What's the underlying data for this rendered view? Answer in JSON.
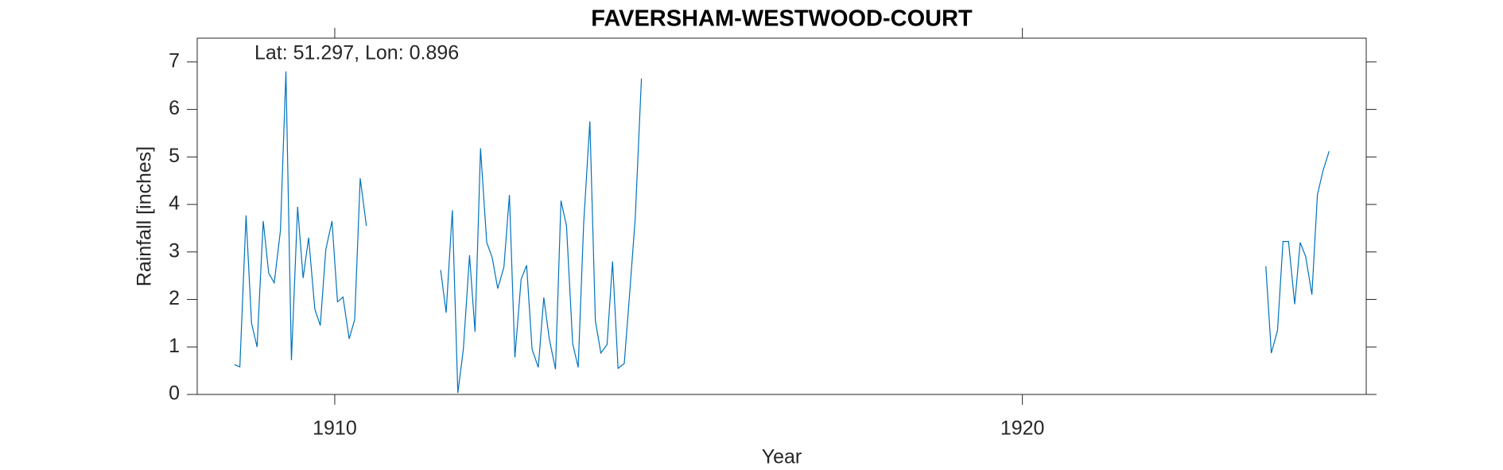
{
  "chart_data": {
    "type": "line",
    "title": "FAVERSHAM-WESTWOOD-COURT",
    "annotation": "Lat: 51.297, Lon: 0.896",
    "xlabel": "Year",
    "ylabel": "Rainfall [inches]",
    "xlim": [
      1908,
      1925
    ],
    "ylim": [
      0,
      7.5
    ],
    "xticks": [
      1910,
      1920
    ],
    "yticks": [
      0,
      1,
      2,
      3,
      4,
      5,
      6,
      7
    ],
    "x": [
      1908.54,
      1908.62,
      1908.71,
      1908.79,
      1908.87,
      1908.96,
      1909.04,
      1909.12,
      1909.21,
      1909.29,
      1909.37,
      1909.46,
      1909.54,
      1909.62,
      1909.71,
      1909.79,
      1909.87,
      1909.96,
      1910.04,
      1910.12,
      1910.21,
      1910.29,
      1910.37,
      1910.46,
      1910.5,
      1911.54,
      1911.62,
      1911.71,
      1911.79,
      1911.87,
      1911.96,
      1912.04,
      1912.12,
      1912.21,
      1912.29,
      1912.37,
      1912.46,
      1912.54,
      1912.62,
      1912.71,
      1912.79,
      1912.87,
      1912.96,
      1913.04,
      1913.12,
      1913.21,
      1913.29,
      1913.37,
      1913.46,
      1913.54,
      1913.62,
      1913.71,
      1913.79,
      1913.87,
      1913.96,
      1914.04,
      1914.12,
      1914.21,
      1914.29,
      1914.37,
      1914.46,
      1915,
      1923.54,
      1923.62,
      1923.71,
      1923.79,
      1923.87,
      1923.96,
      1924.04,
      1924.12,
      1924.21,
      1924.29,
      1924.37,
      1924.46
    ],
    "series": [
      {
        "color": "#0072bd",
        "values": [
          0.63,
          0.58,
          3.77,
          1.5,
          1.0,
          3.65,
          2.55,
          2.35,
          3.45,
          6.8,
          0.72,
          3.95,
          2.45,
          3.3,
          1.8,
          1.45,
          3.05,
          3.65,
          1.95,
          2.05,
          1.17,
          1.58,
          4.55,
          3.55,
          null,
          2.62,
          1.72,
          3.88,
          0.03,
          0.95,
          2.93,
          1.32,
          5.18,
          3.2,
          2.88,
          2.23,
          2.68,
          4.2,
          0.78,
          2.42,
          2.72,
          0.95,
          0.57,
          2.04,
          1.17,
          0.53,
          4.08,
          3.55,
          1.07,
          0.57,
          3.6,
          5.75,
          1.55,
          0.87,
          1.05,
          2.8,
          0.55,
          0.65,
          2.15,
          3.72,
          6.65,
          null,
          2.7,
          0.87,
          1.35,
          3.22,
          3.22,
          1.9,
          3.2,
          2.9,
          2.1,
          4.2,
          4.7,
          5.12
        ]
      }
    ]
  }
}
